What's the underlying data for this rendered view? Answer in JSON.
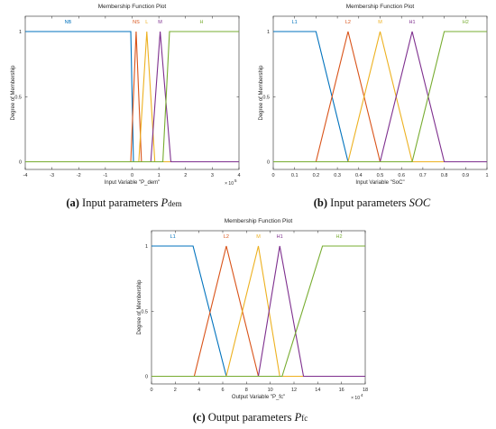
{
  "colors": {
    "blue": "#0072BD",
    "orange": "#D95319",
    "yellow": "#EDB120",
    "purple": "#7E2F8E",
    "green": "#77AC30",
    "axis": "#262626",
    "grid": "#e0e0e0"
  },
  "chart_data": [
    {
      "type": "line",
      "title": "Membership Function Plot",
      "xlabel": "Input Variable \"P_dem\"",
      "ylabel": "Degree of Membership",
      "xlim": [
        -4,
        4
      ],
      "ylim": [
        0,
        1
      ],
      "x_exponent": "× 10",
      "x_exponent_power": "5",
      "x_ticks": [
        -4,
        -3,
        -2,
        -1,
        0,
        1,
        2,
        3,
        4
      ],
      "x_tick_labels": [
        "-4",
        "-3",
        "-2",
        "-1",
        "0",
        "1",
        "2",
        "3",
        "4"
      ],
      "y_ticks": [
        0,
        0.5,
        1
      ],
      "y_tick_labels": [
        "0",
        "0.5",
        "1"
      ],
      "caption": {
        "label": "(a)",
        "text": "Input parameters ",
        "symbol": "P",
        "subscript": "dem"
      },
      "series": [
        {
          "name": "NB",
          "color": "blue",
          "x": [
            -4,
            -0.05,
            0.05
          ],
          "y": [
            1,
            1,
            0
          ],
          "label_x": -2.4
        },
        {
          "name": "NS",
          "color": "orange",
          "x": [
            -0.05,
            0.15,
            0.35
          ],
          "y": [
            0,
            1,
            0
          ],
          "label_x": 0.15
        },
        {
          "name": "L",
          "color": "yellow",
          "x": [
            0.25,
            0.55,
            0.85
          ],
          "y": [
            0,
            1,
            0
          ],
          "label_x": 0.55
        },
        {
          "name": "M",
          "color": "purple",
          "x": [
            0.7,
            1.05,
            1.45
          ],
          "y": [
            0,
            1,
            0
          ],
          "label_x": 1.05
        },
        {
          "name": "H",
          "color": "green",
          "x": [
            1.15,
            1.4,
            4
          ],
          "y": [
            0,
            1,
            1
          ],
          "label_x": 2.6
        }
      ]
    },
    {
      "type": "line",
      "title": "Membership Function Plot",
      "xlabel": "Input Variable \"SoC\"",
      "ylabel": "Degree of Membership",
      "xlim": [
        0,
        1
      ],
      "ylim": [
        0,
        1
      ],
      "x_ticks": [
        0,
        0.1,
        0.2,
        0.3,
        0.4,
        0.5,
        0.6,
        0.7,
        0.8,
        0.9,
        1
      ],
      "x_tick_labels": [
        "0",
        "0.1",
        "0.2",
        "0.3",
        "0.4",
        "0.5",
        "0.6",
        "0.7",
        "0.8",
        "0.9",
        "1"
      ],
      "y_ticks": [
        0,
        0.5,
        1
      ],
      "y_tick_labels": [
        "0",
        "0.5",
        "1"
      ],
      "caption": {
        "label": "(b)",
        "text": "Input parameters ",
        "symbol": "SOC",
        "subscript": ""
      },
      "series": [
        {
          "name": "L1",
          "color": "blue",
          "x": [
            0,
            0.2,
            0.35
          ],
          "y": [
            1,
            1,
            0
          ],
          "label_x": 0.1
        },
        {
          "name": "L2",
          "color": "orange",
          "x": [
            0.2,
            0.35,
            0.5
          ],
          "y": [
            0,
            1,
            0
          ],
          "label_x": 0.35
        },
        {
          "name": "M",
          "color": "yellow",
          "x": [
            0.35,
            0.5,
            0.65
          ],
          "y": [
            0,
            1,
            0
          ],
          "label_x": 0.5
        },
        {
          "name": "H1",
          "color": "purple",
          "x": [
            0.5,
            0.65,
            0.8
          ],
          "y": [
            0,
            1,
            0
          ],
          "label_x": 0.65
        },
        {
          "name": "H2",
          "color": "green",
          "x": [
            0.65,
            0.8,
            1
          ],
          "y": [
            0,
            1,
            1
          ],
          "label_x": 0.9
        }
      ]
    },
    {
      "type": "line",
      "title": "Membership Function Plot",
      "xlabel": "Output Variable \"P_fc\"",
      "ylabel": "Degree of Membership",
      "xlim": [
        0,
        18
      ],
      "ylim": [
        0,
        1
      ],
      "x_exponent": "× 10",
      "x_exponent_power": "4",
      "x_ticks": [
        0,
        2,
        4,
        6,
        8,
        10,
        12,
        14,
        16,
        18
      ],
      "x_tick_labels": [
        "0",
        "2",
        "4",
        "6",
        "8",
        "10",
        "12",
        "14",
        "16",
        "18"
      ],
      "y_ticks": [
        0,
        0.5,
        1
      ],
      "y_tick_labels": [
        "0",
        "0.5",
        "1"
      ],
      "caption": {
        "label": "(c)",
        "text": "Output parameters ",
        "symbol": "P",
        "subscript": "fc"
      },
      "series": [
        {
          "name": "L1",
          "color": "blue",
          "x": [
            0,
            3.5,
            6.3
          ],
          "y": [
            1,
            1,
            0
          ],
          "label_x": 1.8
        },
        {
          "name": "L2",
          "color": "orange",
          "x": [
            3.6,
            6.3,
            9
          ],
          "y": [
            0,
            1,
            0
          ],
          "label_x": 6.3
        },
        {
          "name": "M",
          "color": "yellow",
          "x": [
            6.3,
            9,
            10.8
          ],
          "y": [
            0,
            1,
            0
          ],
          "label_x": 9
        },
        {
          "name": "H1",
          "color": "purple",
          "x": [
            9,
            10.8,
            12.8
          ],
          "y": [
            0,
            1,
            0
          ],
          "label_x": 10.8
        },
        {
          "name": "H2",
          "color": "green",
          "x": [
            11,
            14.4,
            18
          ],
          "y": [
            0,
            1,
            1
          ],
          "label_x": 15.8
        }
      ]
    }
  ]
}
